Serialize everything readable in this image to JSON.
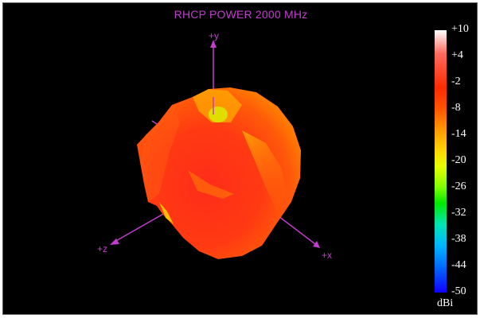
{
  "plot": {
    "title": "RHCP POWER 2000  MHz",
    "axes": {
      "y": "+y",
      "z": "+z",
      "x": "+x"
    },
    "colors": {
      "axis": "#c33ccf",
      "background": "#000000",
      "label": "#ffffff"
    }
  },
  "colorbar": {
    "unit": "dBi",
    "ticks": [
      "+10",
      "+4",
      "-2",
      "-8",
      "-14",
      "-20",
      "-26",
      "-32",
      "-38",
      "-44",
      "-50"
    ]
  }
}
